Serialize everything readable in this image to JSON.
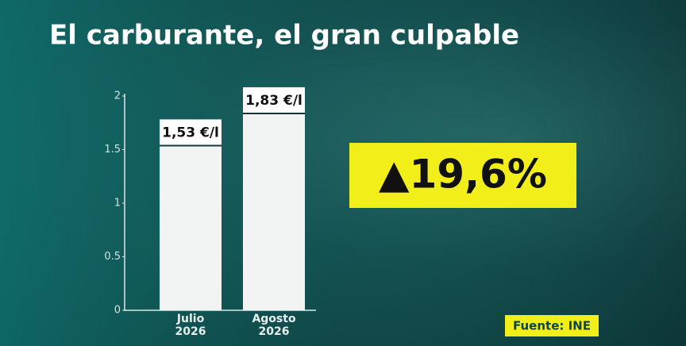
{
  "chart_data": {
    "type": "bar",
    "title": "El carburante, el gran culpable",
    "categories": [
      "Julio 2026",
      "Agosto 2026"
    ],
    "values": [
      1.53,
      1.83
    ],
    "value_labels": [
      "1,53 €/l",
      "1,83 €/l"
    ],
    "color": "#f2f3f3",
    "ylim": [
      0,
      2
    ],
    "yticks": [
      0,
      0.5,
      1,
      1.5,
      2
    ],
    "annotation": "▲19,6%",
    "source": "Fuente: INE"
  }
}
